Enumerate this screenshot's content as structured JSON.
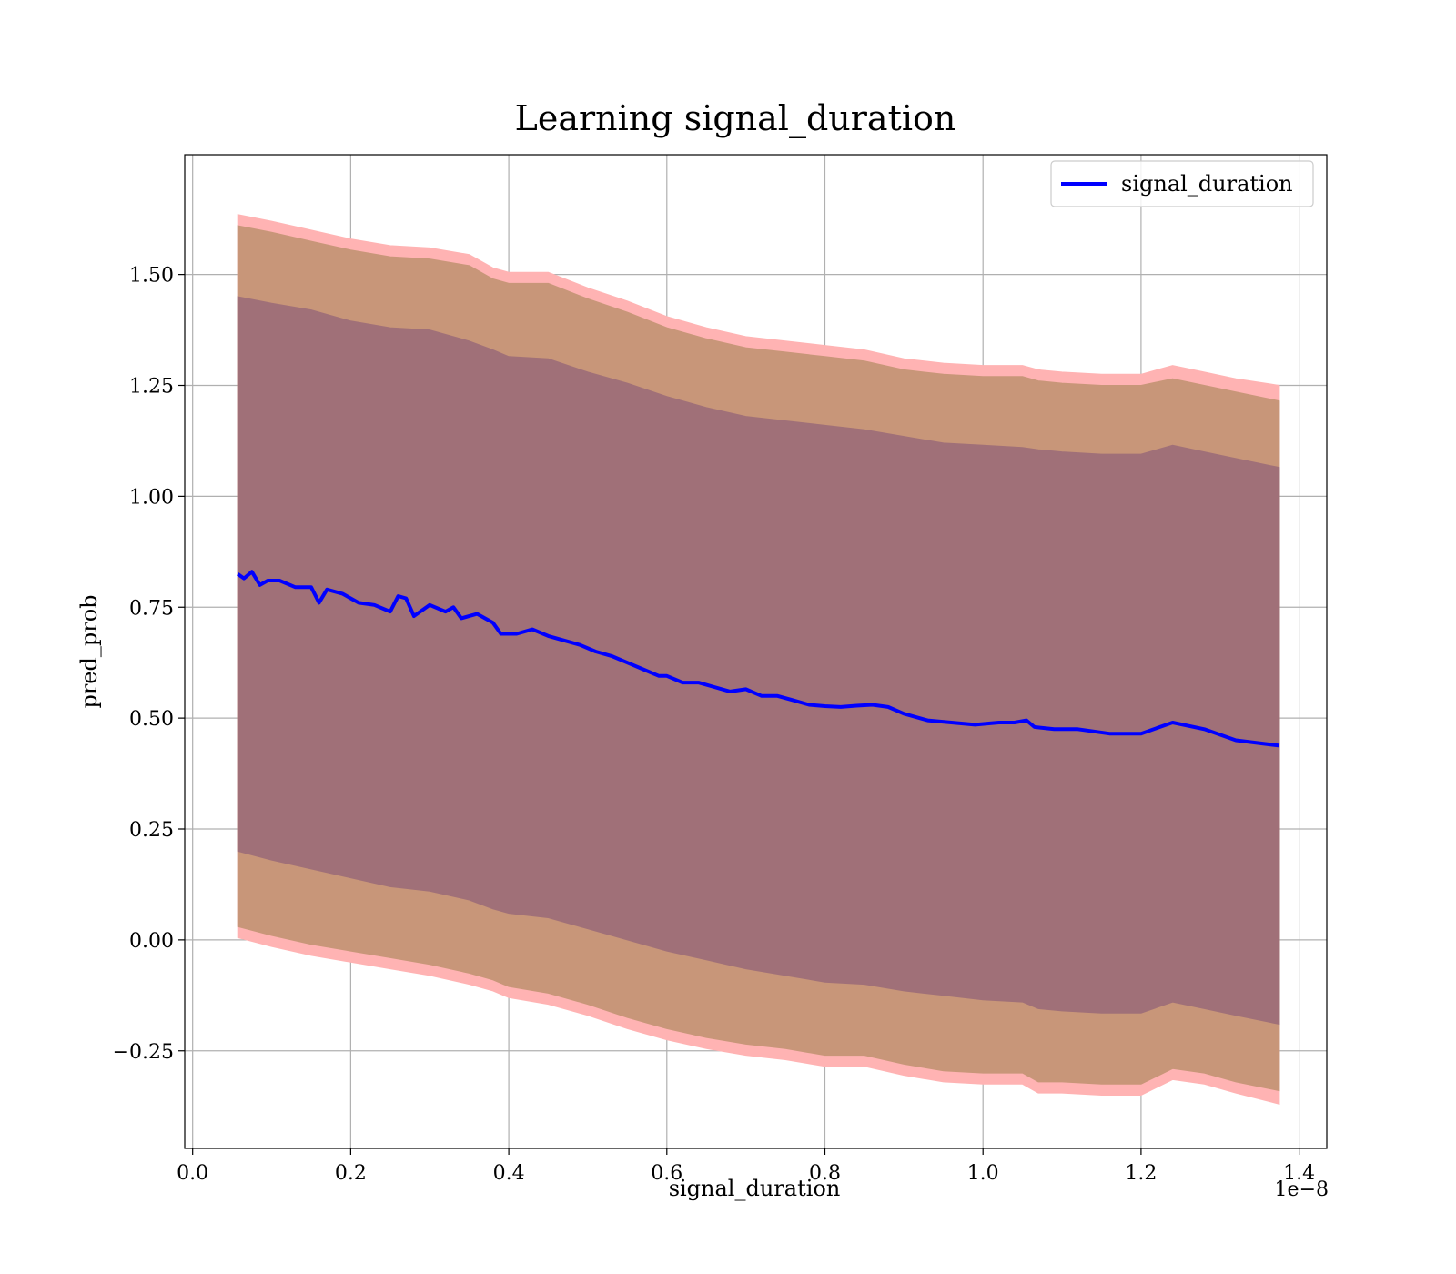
{
  "chart_data": {
    "type": "line",
    "title": "Learning signal_duration",
    "xlabel": "signal_duration",
    "ylabel": "pred_prob",
    "x_offset_text": "1e−8",
    "xlim": [
      -0.01,
      1.435
    ],
    "ylim": [
      -0.47,
      1.77
    ],
    "x_ticks": [
      0.0,
      0.2,
      0.4,
      0.6,
      0.8,
      1.0,
      1.2,
      1.4
    ],
    "x_tick_labels": [
      "0.0",
      "0.2",
      "0.4",
      "0.6",
      "0.8",
      "1.0",
      "1.2",
      "1.4"
    ],
    "y_ticks": [
      -0.25,
      0.0,
      0.25,
      0.5,
      0.75,
      1.0,
      1.25,
      1.5
    ],
    "y_tick_labels": [
      "−0.25",
      "0.00",
      "0.25",
      "0.50",
      "0.75",
      "1.00",
      "1.25",
      "1.50"
    ],
    "grid": true,
    "legend": {
      "position": "upper-right",
      "entries": [
        "signal_duration"
      ]
    },
    "colors": {
      "line": "#0000ff",
      "band_outer": "#ffb3b3",
      "band_middle": "#c89679",
      "band_inner": "#a07078"
    },
    "series": [
      {
        "name": "signal_duration",
        "x": [
          0.057,
          0.065,
          0.075,
          0.085,
          0.095,
          0.11,
          0.13,
          0.15,
          0.16,
          0.17,
          0.19,
          0.21,
          0.23,
          0.25,
          0.26,
          0.27,
          0.28,
          0.3,
          0.32,
          0.33,
          0.34,
          0.36,
          0.38,
          0.39,
          0.41,
          0.43,
          0.45,
          0.47,
          0.49,
          0.51,
          0.53,
          0.55,
          0.57,
          0.59,
          0.6,
          0.62,
          0.64,
          0.66,
          0.68,
          0.7,
          0.72,
          0.74,
          0.76,
          0.78,
          0.8,
          0.82,
          0.84,
          0.86,
          0.88,
          0.9,
          0.93,
          0.96,
          0.99,
          1.02,
          1.04,
          1.055,
          1.065,
          1.09,
          1.12,
          1.16,
          1.2,
          1.24,
          1.28,
          1.32,
          1.375
        ],
        "y": [
          0.825,
          0.815,
          0.83,
          0.8,
          0.81,
          0.81,
          0.795,
          0.795,
          0.76,
          0.79,
          0.78,
          0.76,
          0.755,
          0.74,
          0.775,
          0.77,
          0.73,
          0.755,
          0.74,
          0.75,
          0.725,
          0.735,
          0.715,
          0.69,
          0.69,
          0.7,
          0.685,
          0.675,
          0.665,
          0.65,
          0.64,
          0.625,
          0.61,
          0.595,
          0.595,
          0.58,
          0.58,
          0.57,
          0.56,
          0.565,
          0.55,
          0.55,
          0.54,
          0.53,
          0.527,
          0.525,
          0.528,
          0.53,
          0.525,
          0.51,
          0.495,
          0.49,
          0.485,
          0.49,
          0.49,
          0.495,
          0.48,
          0.475,
          0.475,
          0.465,
          0.465,
          0.49,
          0.475,
          0.45,
          0.438
        ]
      }
    ],
    "bands": [
      {
        "name": "outer",
        "x": [
          0.057,
          0.1,
          0.15,
          0.2,
          0.25,
          0.3,
          0.35,
          0.38,
          0.4,
          0.45,
          0.5,
          0.55,
          0.6,
          0.65,
          0.7,
          0.75,
          0.8,
          0.85,
          0.9,
          0.95,
          1.0,
          1.05,
          1.07,
          1.1,
          1.15,
          1.2,
          1.24,
          1.28,
          1.32,
          1.375
        ],
        "lower": [
          0.005,
          -0.015,
          -0.035,
          -0.05,
          -0.065,
          -0.08,
          -0.1,
          -0.115,
          -0.13,
          -0.145,
          -0.17,
          -0.2,
          -0.225,
          -0.245,
          -0.26,
          -0.27,
          -0.285,
          -0.285,
          -0.305,
          -0.32,
          -0.325,
          -0.325,
          -0.345,
          -0.345,
          -0.35,
          -0.35,
          -0.315,
          -0.325,
          -0.345,
          -0.37
        ],
        "upper": [
          1.635,
          1.62,
          1.6,
          1.58,
          1.565,
          1.56,
          1.545,
          1.515,
          1.505,
          1.505,
          1.47,
          1.44,
          1.405,
          1.38,
          1.36,
          1.35,
          1.34,
          1.33,
          1.31,
          1.3,
          1.295,
          1.295,
          1.285,
          1.28,
          1.275,
          1.275,
          1.295,
          1.28,
          1.265,
          1.25
        ]
      },
      {
        "name": "middle",
        "x": [
          0.057,
          0.1,
          0.15,
          0.2,
          0.25,
          0.3,
          0.35,
          0.38,
          0.4,
          0.45,
          0.5,
          0.55,
          0.6,
          0.65,
          0.7,
          0.75,
          0.8,
          0.85,
          0.9,
          0.95,
          1.0,
          1.05,
          1.07,
          1.1,
          1.15,
          1.2,
          1.24,
          1.28,
          1.32,
          1.375
        ],
        "lower": [
          0.03,
          0.01,
          -0.01,
          -0.025,
          -0.04,
          -0.055,
          -0.075,
          -0.09,
          -0.105,
          -0.12,
          -0.145,
          -0.175,
          -0.2,
          -0.22,
          -0.235,
          -0.245,
          -0.26,
          -0.26,
          -0.28,
          -0.295,
          -0.3,
          -0.3,
          -0.32,
          -0.32,
          -0.325,
          -0.325,
          -0.29,
          -0.3,
          -0.32,
          -0.34
        ],
        "upper": [
          1.61,
          1.595,
          1.575,
          1.555,
          1.54,
          1.535,
          1.52,
          1.49,
          1.48,
          1.48,
          1.445,
          1.415,
          1.38,
          1.355,
          1.335,
          1.325,
          1.315,
          1.305,
          1.285,
          1.275,
          1.27,
          1.27,
          1.26,
          1.255,
          1.25,
          1.25,
          1.265,
          1.25,
          1.235,
          1.215
        ]
      },
      {
        "name": "inner",
        "x": [
          0.057,
          0.1,
          0.15,
          0.2,
          0.25,
          0.3,
          0.35,
          0.38,
          0.4,
          0.45,
          0.5,
          0.55,
          0.6,
          0.65,
          0.7,
          0.75,
          0.8,
          0.85,
          0.9,
          0.95,
          1.0,
          1.05,
          1.07,
          1.1,
          1.15,
          1.2,
          1.24,
          1.28,
          1.32,
          1.375
        ],
        "lower": [
          0.2,
          0.18,
          0.16,
          0.14,
          0.12,
          0.11,
          0.09,
          0.07,
          0.06,
          0.05,
          0.025,
          0.0,
          -0.025,
          -0.045,
          -0.065,
          -0.08,
          -0.095,
          -0.1,
          -0.115,
          -0.125,
          -0.135,
          -0.14,
          -0.155,
          -0.16,
          -0.165,
          -0.165,
          -0.14,
          -0.155,
          -0.17,
          -0.19
        ],
        "upper": [
          1.45,
          1.435,
          1.42,
          1.395,
          1.38,
          1.375,
          1.35,
          1.33,
          1.315,
          1.31,
          1.28,
          1.255,
          1.225,
          1.2,
          1.18,
          1.17,
          1.16,
          1.15,
          1.135,
          1.12,
          1.115,
          1.11,
          1.105,
          1.1,
          1.095,
          1.095,
          1.115,
          1.1,
          1.085,
          1.065
        ]
      }
    ]
  }
}
